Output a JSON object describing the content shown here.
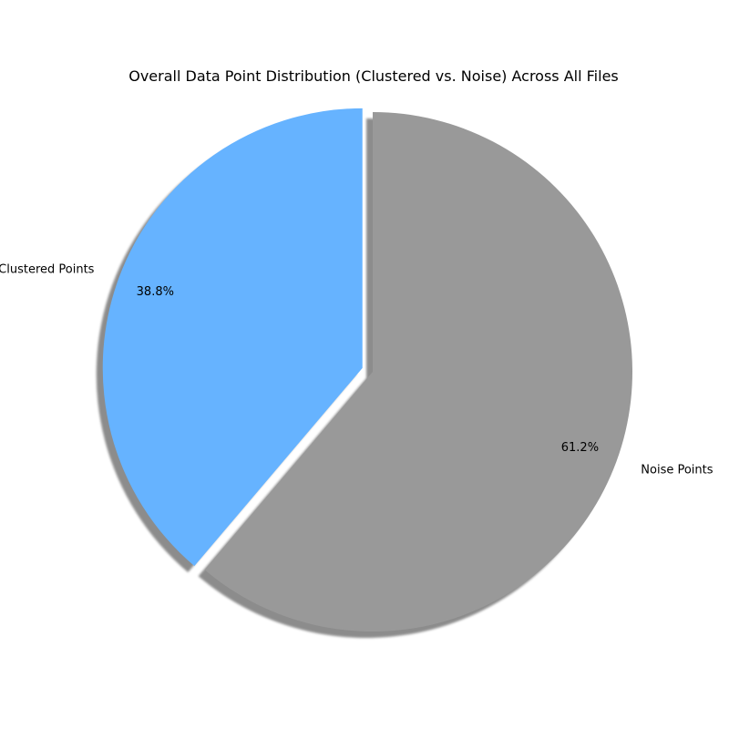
{
  "chart_data": {
    "type": "pie",
    "title": "Overall Data Point Distribution (Clustered vs. Noise) Across All Files",
    "start_angle_deg": 90,
    "direction": "counterclockwise",
    "shadow": true,
    "slices": [
      {
        "label": "Clustered Points",
        "value": 38.8,
        "pct_label": "38.8%",
        "color": "#66b3ff",
        "exploded": true
      },
      {
        "label": "Noise Points",
        "value": 61.2,
        "pct_label": "61.2%",
        "color": "#999999",
        "exploded": false
      }
    ]
  }
}
